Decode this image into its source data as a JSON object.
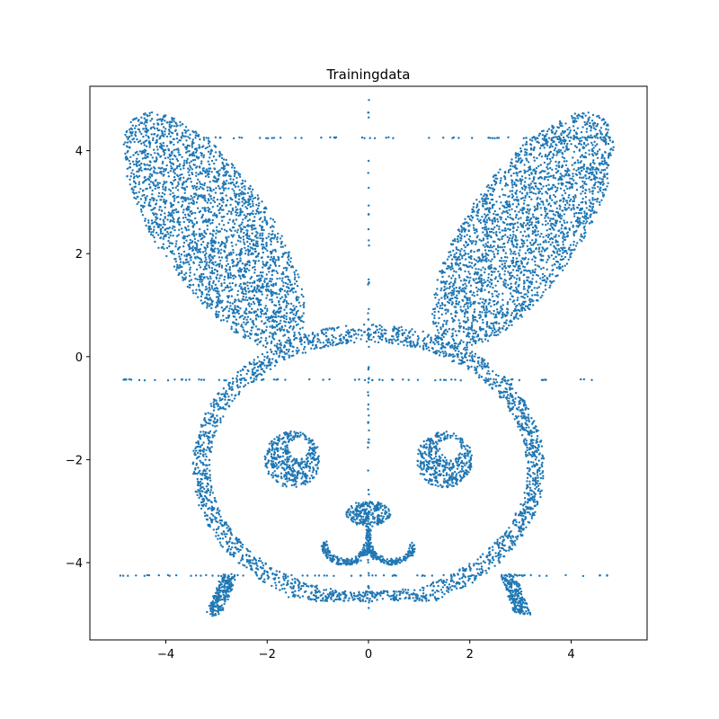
{
  "chart_data": {
    "type": "scatter",
    "title": "Trainingdata",
    "xlabel": "",
    "ylabel": "",
    "xlim": [
      -5.5,
      5.5
    ],
    "ylim": [
      -5.5,
      5.25
    ],
    "xticks": [
      -4,
      -2,
      0,
      2,
      4
    ],
    "yticks": [
      -4,
      -2,
      0,
      2,
      4
    ],
    "xtick_labels": [
      "−4",
      "−2",
      "0",
      "2",
      "4"
    ],
    "ytick_labels": [
      "−4",
      "−2",
      "0",
      "2",
      "4"
    ],
    "grid": false,
    "legend": false,
    "marker_color": "#1f77b4",
    "series": [
      {
        "shape": "bunny silhouette: left ear, right ear, head outline ring, two ring-shaped eyes, nose, mouth, two feet, plus sparse scattered points along lines x=0, y=4.25, y=-0.45, y=-4.25",
        "components": [
          {
            "part": "left-ear",
            "center": [
              -3.05,
              2.45
            ],
            "semi_axes": [
              1.1,
              2.7
            ],
            "rotation_deg": 35
          },
          {
            "part": "right-ear",
            "center": [
              3.05,
              2.45
            ],
            "semi_axes": [
              1.1,
              2.7
            ],
            "rotation_deg": -35
          },
          {
            "part": "head-ring",
            "center": [
              0,
              -2.15
            ],
            "radii": [
              3.3,
              2.6
            ],
            "thickness": 0.35
          },
          {
            "part": "left-eye",
            "center": [
              -1.5,
              -2.0
            ],
            "radius": 0.55
          },
          {
            "part": "right-eye",
            "center": [
              1.5,
              -2.0
            ],
            "radius": 0.55
          },
          {
            "part": "nose",
            "center": [
              0,
              -3.05
            ],
            "approx_radius": 0.42
          },
          {
            "part": "mouth",
            "x_range": [
              -0.95,
              0.95
            ],
            "y_range": [
              -4.05,
              -3.6
            ]
          },
          {
            "part": "left-foot",
            "x_range": [
              -3.15,
              -2.7
            ],
            "y_range": [
              -5.0,
              -4.2
            ]
          },
          {
            "part": "right-foot",
            "x_range": [
              2.7,
              3.25
            ],
            "y_range": [
              -5.0,
              -4.2
            ]
          },
          {
            "part": "sparse-vertical-line",
            "x": 0,
            "y_range": [
              -5.0,
              5.0
            ]
          },
          {
            "part": "sparse-horizontal-line",
            "y": 4.25,
            "x_range": [
              -3.2,
              4.9
            ]
          },
          {
            "part": "sparse-horizontal-line",
            "y": -0.45,
            "x_range": [
              -4.9,
              4.9
            ]
          },
          {
            "part": "sparse-horizontal-line",
            "y": -4.25,
            "x_range": [
              -5.0,
              5.0
            ]
          }
        ]
      }
    ]
  }
}
